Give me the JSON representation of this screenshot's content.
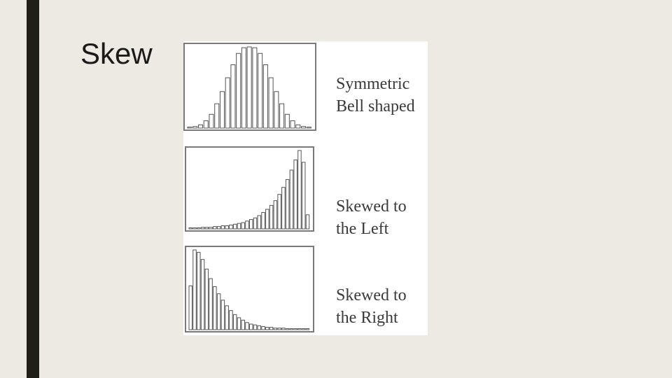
{
  "slide": {
    "title": "Skew"
  },
  "colors": {
    "background": "#edeae3",
    "accent_bar": "#1f1f17",
    "bar_stroke": "#555555",
    "frame": "#7a7a7a"
  },
  "labels": {
    "symmetric": {
      "line1": "Symmetric",
      "line2": "Bell shaped"
    },
    "left": {
      "line1": "Skewed to",
      "line2": "the Left"
    },
    "right": {
      "line1": "Skewed to",
      "line2": "the Right"
    }
  },
  "chart_data": [
    {
      "type": "bar",
      "values": [
        1,
        2,
        4,
        9,
        17,
        30,
        45,
        62,
        78,
        92,
        99,
        100,
        99,
        92,
        78,
        62,
        45,
        30,
        17,
        9,
        4,
        2,
        1
      ],
      "ylim": [
        0,
        100
      ],
      "grid": false
    },
    {
      "type": "bar",
      "values": [
        1,
        1,
        1,
        2,
        2,
        2,
        3,
        3,
        4,
        4,
        5,
        6,
        7,
        8,
        10,
        12,
        14,
        17,
        21,
        25,
        30,
        36,
        44,
        53,
        63,
        75,
        88,
        100,
        85,
        18
      ],
      "ylim": [
        0,
        100
      ],
      "grid": false
    },
    {
      "type": "bar",
      "values": [
        55,
        100,
        97,
        88,
        76,
        64,
        54,
        45,
        37,
        30,
        24,
        19,
        15,
        12,
        9,
        7,
        6,
        5,
        4,
        3,
        3,
        2,
        2,
        2,
        1,
        1,
        1,
        1,
        1,
        1
      ],
      "ylim": [
        0,
        100
      ],
      "grid": false
    }
  ]
}
